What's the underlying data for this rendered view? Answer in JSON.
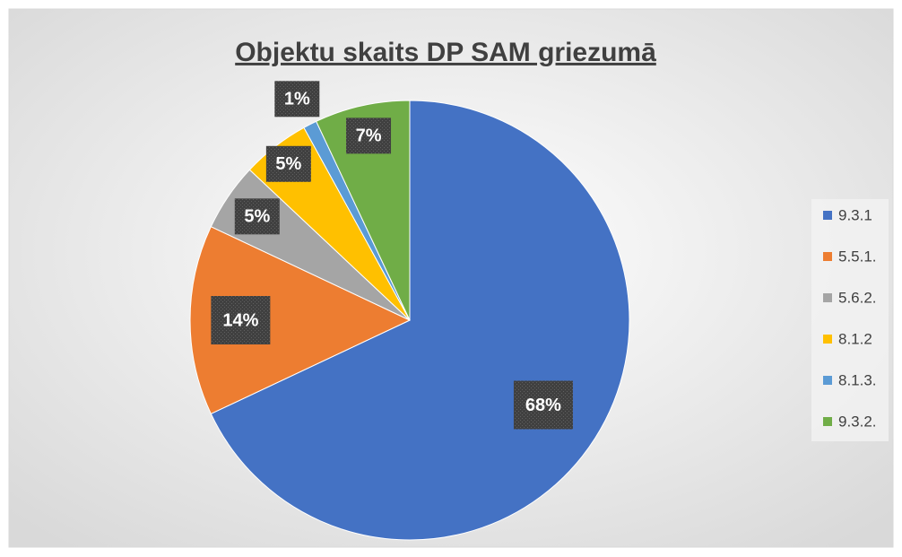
{
  "chart_data": {
    "type": "pie",
    "title": "Objektu skaits DP SAM griezumā",
    "categories": [
      "9.3.1",
      "5.5.1.",
      "5.6.2.",
      "8.1.2",
      "8.1.3.",
      "9.3.2."
    ],
    "values": [
      68,
      14,
      5,
      5,
      1,
      7
    ],
    "value_labels": [
      "68%",
      "14%",
      "5%",
      "5%",
      "1%",
      "7%"
    ],
    "colors": [
      "#4472c4",
      "#ed7d31",
      "#a5a5a5",
      "#ffc000",
      "#5b9bd5",
      "#70ad47"
    ],
    "legend": "right"
  }
}
